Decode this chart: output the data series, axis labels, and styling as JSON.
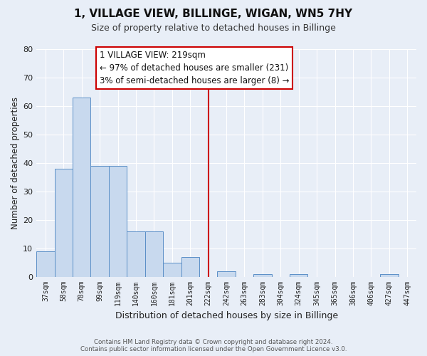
{
  "title": "1, VILLAGE VIEW, BILLINGE, WIGAN, WN5 7HY",
  "subtitle": "Size of property relative to detached houses in Billinge",
  "xlabel": "Distribution of detached houses by size in Billinge",
  "ylabel": "Number of detached properties",
  "bar_labels": [
    "37sqm",
    "58sqm",
    "78sqm",
    "99sqm",
    "119sqm",
    "140sqm",
    "160sqm",
    "181sqm",
    "201sqm",
    "222sqm",
    "242sqm",
    "263sqm",
    "283sqm",
    "304sqm",
    "324sqm",
    "345sqm",
    "365sqm",
    "386sqm",
    "406sqm",
    "427sqm",
    "447sqm"
  ],
  "bar_values": [
    9,
    38,
    63,
    39,
    39,
    16,
    16,
    5,
    7,
    0,
    2,
    0,
    1,
    0,
    1,
    0,
    0,
    0,
    0,
    1,
    0
  ],
  "bar_color": "#c8d9ee",
  "bar_edge_color": "#5b8fc7",
  "vline_x": 9,
  "vline_color": "#cc0000",
  "annotation_title": "1 VILLAGE VIEW: 219sqm",
  "annotation_line1": "← 97% of detached houses are smaller (231)",
  "annotation_line2": "3% of semi-detached houses are larger (8) →",
  "annotation_box_color": "#ffffff",
  "annotation_box_edge": "#cc0000",
  "ylim": [
    0,
    80
  ],
  "yticks": [
    0,
    10,
    20,
    30,
    40,
    50,
    60,
    70,
    80
  ],
  "bg_color": "#e8eef7",
  "grid_color": "#ffffff",
  "footer_line1": "Contains HM Land Registry data © Crown copyright and database right 2024.",
  "footer_line2": "Contains public sector information licensed under the Open Government Licence v3.0."
}
